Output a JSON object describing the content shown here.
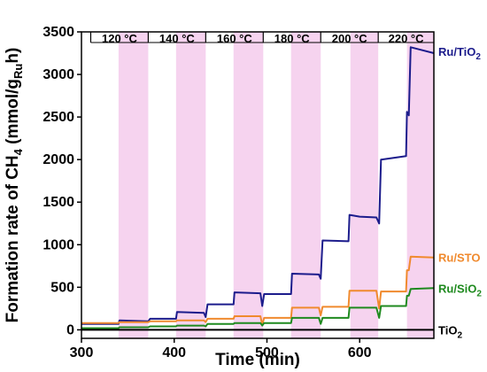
{
  "chart_data": {
    "type": "line",
    "xlabel": "Time (min)",
    "ylabel": {
      "prefix": "Formation rate of CH",
      "sub1": "4",
      "mid": " (mmol/g",
      "sub2": "Ru",
      "suffix": "h)"
    },
    "xlim": [
      300,
      680
    ],
    "ylim": [
      -100,
      3500
    ],
    "xticks": [
      300,
      400,
      500,
      600
    ],
    "yticks": [
      0,
      500,
      1000,
      1500,
      2000,
      2500,
      3000,
      3500
    ],
    "grid": false,
    "temperature_sections": [
      {
        "label": "120 °C",
        "x_start": 310,
        "x_end": 372
      },
      {
        "label": "140 °C",
        "x_start": 372,
        "x_end": 434
      },
      {
        "label": "160 °C",
        "x_start": 434,
        "x_end": 496
      },
      {
        "label": "180 °C",
        "x_start": 496,
        "x_end": 558
      },
      {
        "label": "200 °C",
        "x_start": 558,
        "x_end": 620
      },
      {
        "label": "220 °C",
        "x_start": 620,
        "x_end": 680
      }
    ],
    "shaded_intervals": [
      [
        340,
        372
      ],
      [
        402,
        434
      ],
      [
        464,
        496
      ],
      [
        526,
        558
      ],
      [
        590,
        620
      ],
      [
        651,
        680
      ]
    ],
    "shade_color": "#f6d3ef",
    "series": [
      {
        "name": "Ru/TiO2",
        "label_main": "Ru/TiO",
        "label_sub": "2",
        "color": "#1c1c8c",
        "points": [
          [
            300,
            70
          ],
          [
            340,
            70
          ],
          [
            341,
            110
          ],
          [
            372,
            100
          ],
          [
            374,
            130
          ],
          [
            402,
            130
          ],
          [
            403,
            210
          ],
          [
            432,
            200
          ],
          [
            434,
            150
          ],
          [
            436,
            300
          ],
          [
            464,
            300
          ],
          [
            465,
            440
          ],
          [
            493,
            430
          ],
          [
            495,
            280
          ],
          [
            497,
            420
          ],
          [
            526,
            420
          ],
          [
            527,
            660
          ],
          [
            556,
            650
          ],
          [
            558,
            600
          ],
          [
            560,
            1050
          ],
          [
            588,
            1040
          ],
          [
            589,
            1350
          ],
          [
            600,
            1330
          ],
          [
            618,
            1320
          ],
          [
            621,
            1250
          ],
          [
            623,
            2000
          ],
          [
            650,
            2040
          ],
          [
            651,
            2560
          ],
          [
            653,
            2520
          ],
          [
            655,
            3320
          ],
          [
            662,
            3300
          ],
          [
            680,
            3250
          ]
        ]
      },
      {
        "name": "Ru/STO",
        "label_main": "Ru/STO",
        "label_sub": "",
        "color": "#f08a2e",
        "points": [
          [
            300,
            80
          ],
          [
            340,
            80
          ],
          [
            341,
            90
          ],
          [
            372,
            90
          ],
          [
            374,
            100
          ],
          [
            402,
            100
          ],
          [
            403,
            110
          ],
          [
            432,
            110
          ],
          [
            434,
            90
          ],
          [
            436,
            130
          ],
          [
            464,
            130
          ],
          [
            465,
            160
          ],
          [
            493,
            160
          ],
          [
            495,
            60
          ],
          [
            497,
            140
          ],
          [
            526,
            140
          ],
          [
            527,
            260
          ],
          [
            556,
            260
          ],
          [
            558,
            170
          ],
          [
            560,
            270
          ],
          [
            588,
            270
          ],
          [
            589,
            460
          ],
          [
            618,
            460
          ],
          [
            621,
            250
          ],
          [
            623,
            450
          ],
          [
            650,
            450
          ],
          [
            651,
            700
          ],
          [
            653,
            700
          ],
          [
            655,
            860
          ],
          [
            680,
            850
          ]
        ]
      },
      {
        "name": "Ru/SiO2",
        "label_main": "Ru/SiO",
        "label_sub": "2",
        "color": "#1f8a1f",
        "points": [
          [
            300,
            20
          ],
          [
            340,
            20
          ],
          [
            341,
            30
          ],
          [
            372,
            30
          ],
          [
            374,
            40
          ],
          [
            402,
            40
          ],
          [
            403,
            50
          ],
          [
            432,
            50
          ],
          [
            434,
            40
          ],
          [
            436,
            70
          ],
          [
            464,
            70
          ],
          [
            465,
            80
          ],
          [
            493,
            80
          ],
          [
            495,
            50
          ],
          [
            497,
            80
          ],
          [
            526,
            80
          ],
          [
            527,
            140
          ],
          [
            556,
            140
          ],
          [
            558,
            70
          ],
          [
            560,
            140
          ],
          [
            588,
            140
          ],
          [
            589,
            260
          ],
          [
            618,
            260
          ],
          [
            621,
            140
          ],
          [
            623,
            280
          ],
          [
            650,
            280
          ],
          [
            651,
            400
          ],
          [
            653,
            400
          ],
          [
            655,
            480
          ],
          [
            680,
            490
          ]
        ]
      },
      {
        "name": "TiO2",
        "label_main": "TiO",
        "label_sub": "2",
        "color": "#000000",
        "points": [
          [
            300,
            0
          ],
          [
            680,
            0
          ]
        ]
      }
    ],
    "series_label_y": [
      3270,
      850,
      490,
      0
    ]
  }
}
